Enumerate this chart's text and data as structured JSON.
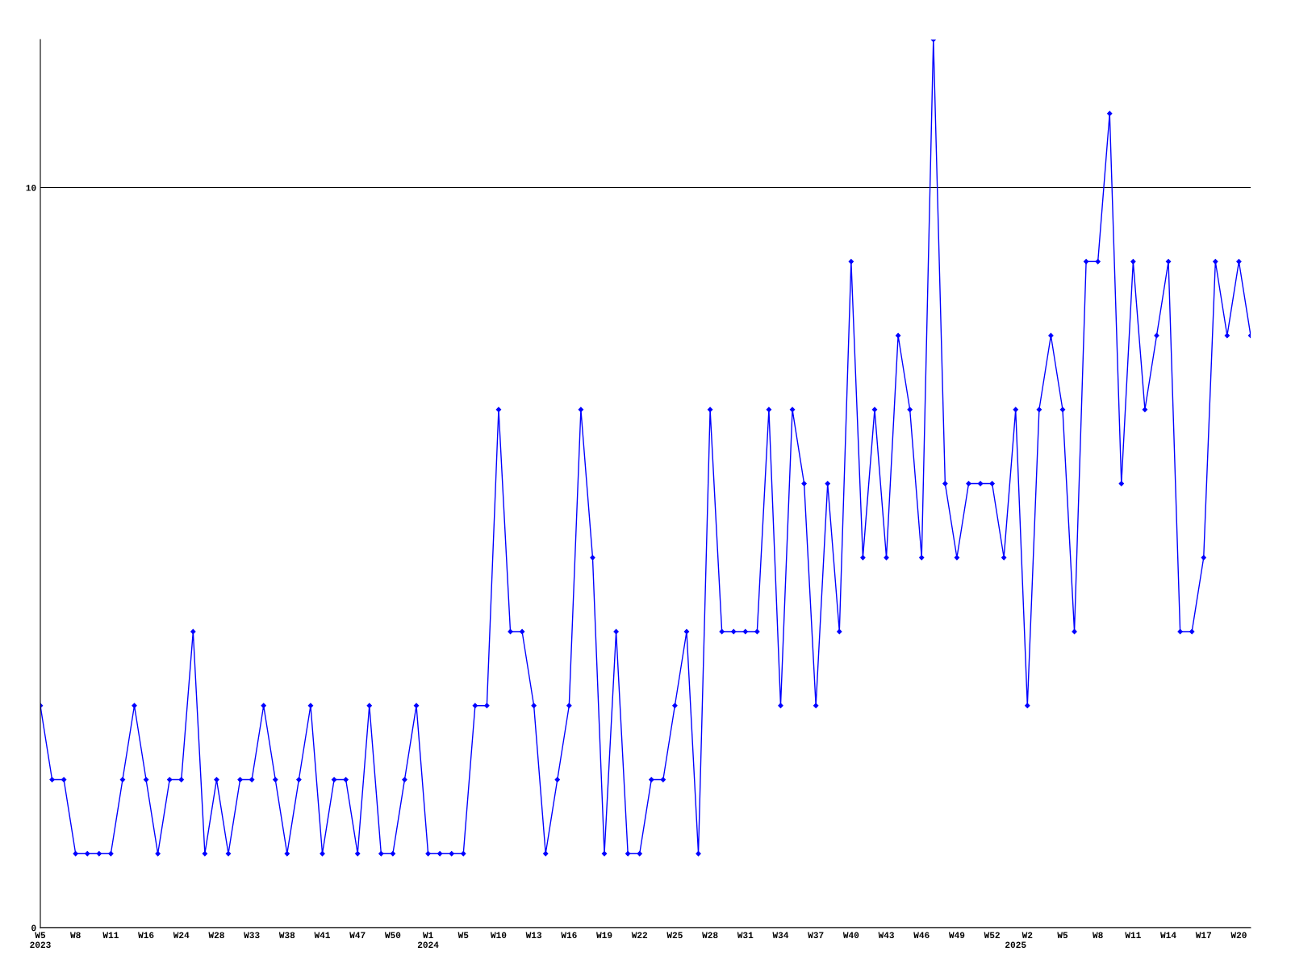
{
  "chart_data": {
    "type": "line",
    "categories": [
      "W5\n2023",
      null,
      null,
      "W8",
      null,
      null,
      "W11",
      null,
      null,
      "W16",
      null,
      null,
      "W24",
      null,
      null,
      "W28",
      null,
      null,
      "W33",
      null,
      null,
      "W38",
      null,
      null,
      "W41",
      null,
      null,
      "W47",
      null,
      null,
      "W50",
      null,
      null,
      "W1\n2024",
      null,
      null,
      "W5",
      null,
      null,
      "W10",
      null,
      null,
      "W13",
      null,
      null,
      "W16",
      null,
      null,
      "W19",
      null,
      null,
      "W22",
      null,
      null,
      "W25",
      null,
      null,
      "W28",
      null,
      null,
      "W31",
      null,
      null,
      "W34",
      null,
      null,
      "W37",
      null,
      null,
      "W40",
      null,
      null,
      "W43",
      null,
      null,
      "W46",
      null,
      null,
      "W49",
      null,
      null,
      "W52",
      null,
      "\n2025",
      "W2",
      null,
      null,
      "W5",
      null,
      null,
      "W8",
      null,
      null,
      "W11",
      null,
      null,
      "W14",
      null,
      null,
      "W17",
      null,
      null,
      "W20",
      null
    ],
    "series": [
      {
        "color": "#0000ff",
        "values": [
          3,
          2,
          2,
          1,
          1,
          1,
          1,
          2,
          3,
          2,
          1,
          2,
          2,
          4,
          1,
          2,
          1,
          2,
          2,
          3,
          2,
          1,
          2,
          3,
          1,
          2,
          2,
          1,
          3,
          1,
          1,
          2,
          3,
          1,
          1,
          1,
          1,
          3,
          3,
          7,
          4,
          4,
          3,
          1,
          2,
          3,
          7,
          5,
          1,
          4,
          1,
          1,
          2,
          2,
          3,
          4,
          1,
          7,
          4,
          4,
          4,
          4,
          7,
          3,
          7,
          6,
          3,
          6,
          4,
          9,
          5,
          7,
          5,
          8,
          7,
          5,
          12,
          6,
          5,
          6,
          6,
          6,
          5,
          7,
          3,
          7,
          8,
          7,
          4,
          9,
          9,
          11,
          6,
          9,
          7,
          8,
          9,
          4,
          4,
          5,
          9,
          8,
          9,
          8
        ]
      }
    ],
    "ylim": [
      0,
      12
    ],
    "yticks": [
      0,
      10
    ],
    "grid": "y",
    "marker": "diamond",
    "line_style": "solid",
    "legend": false
  }
}
